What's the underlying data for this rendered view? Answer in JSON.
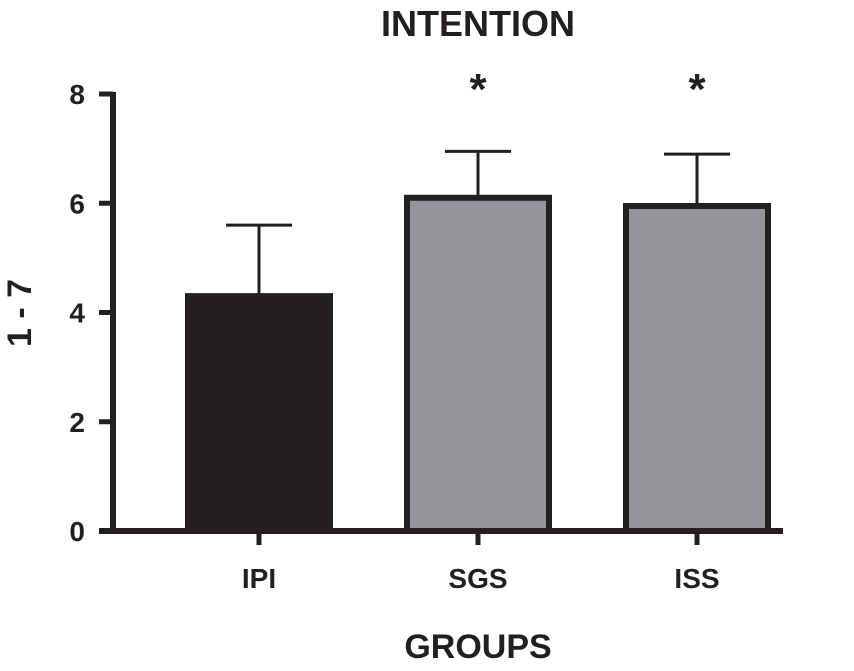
{
  "chart_data": {
    "type": "bar",
    "title": "INTENTION",
    "xlabel": "GROUPS",
    "ylabel": "1 - 7",
    "ylim": [
      0,
      8
    ],
    "yticks": [
      0,
      2,
      4,
      6,
      8
    ],
    "categories": [
      "IPI",
      "SGS",
      "ISS"
    ],
    "values": [
      4.3,
      6.1,
      5.95
    ],
    "error_upper": [
      1.3,
      0.85,
      0.95
    ],
    "significance": [
      "",
      "*",
      "*"
    ],
    "bar_fill_colors": [
      "#231f20",
      "#939598",
      "#939598"
    ],
    "outline_color": "#231f20",
    "grid": false,
    "legend": "none"
  }
}
